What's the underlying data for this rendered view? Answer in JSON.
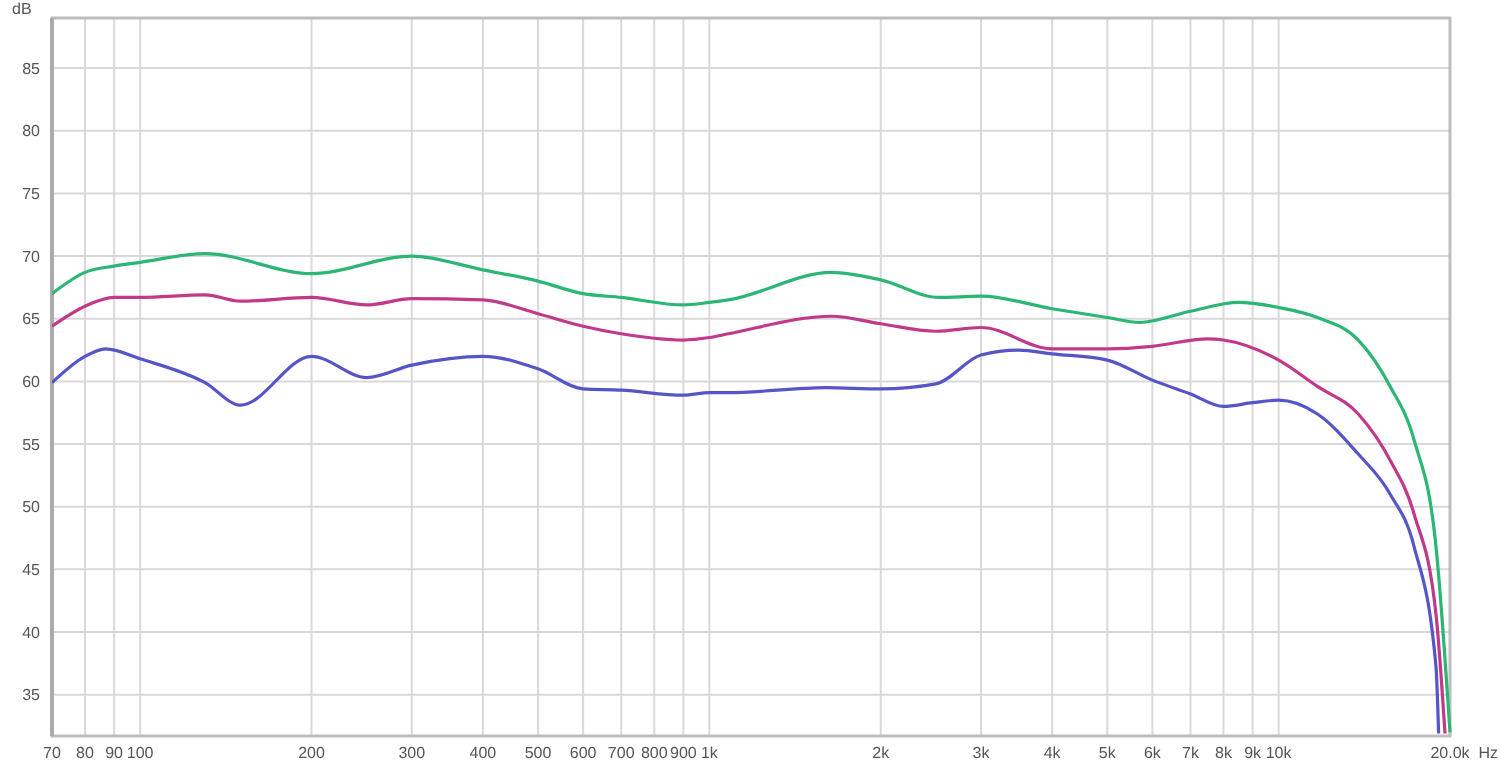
{
  "chart_data": {
    "type": "line",
    "xlabel": "Hz",
    "ylabel": "dB",
    "log": "x",
    "grid": true,
    "marker": "none",
    "line_style": "solid",
    "xlim": [
      70,
      20000
    ],
    "ylim": [
      31.7,
      89
    ],
    "xticks": [
      70,
      80,
      90,
      100,
      200,
      300,
      400,
      500,
      600,
      700,
      800,
      900,
      {
        "value": 1000,
        "label": "1k"
      },
      {
        "value": 2000,
        "label": "2k"
      },
      {
        "value": 3000,
        "label": "3k"
      },
      {
        "value": 4000,
        "label": "4k"
      },
      {
        "value": 5000,
        "label": "5k"
      },
      {
        "value": 6000,
        "label": "6k"
      },
      {
        "value": 7000,
        "label": "7k"
      },
      {
        "value": 8000,
        "label": "8k"
      },
      {
        "value": 9000,
        "label": "9k"
      },
      {
        "value": 10000,
        "label": "10k"
      },
      {
        "value": 20000,
        "label": "20.0k"
      }
    ],
    "yticks": [
      35,
      40,
      45,
      50,
      55,
      60,
      65,
      70,
      75,
      80,
      85
    ],
    "series": [
      {
        "color": "#2bb673",
        "x": [
          70,
          80,
          90,
          100,
          130,
          200,
          300,
          400,
          500,
          600,
          700,
          900,
          1000,
          1080,
          1640,
          2000,
          2530,
          3000,
          4000,
          5000,
          5700,
          7000,
          8500,
          10000,
          11700,
          13800,
          15700,
          17300,
          18900,
          20000
        ],
        "values": [
          67.0,
          68.7,
          69.2,
          69.5,
          70.2,
          68.6,
          70.0,
          68.9,
          68.0,
          67.0,
          66.7,
          66.1,
          66.3,
          66.5,
          68.7,
          68.1,
          66.7,
          66.8,
          65.8,
          65.1,
          64.7,
          65.6,
          66.3,
          65.9,
          65.1,
          63.3,
          59.6,
          55.3,
          46.8,
          32.0
        ]
      },
      {
        "color": "#c0398a",
        "x": [
          70,
          80,
          90,
          100,
          130,
          150,
          200,
          250,
          300,
          400,
          500,
          600,
          700,
          900,
          1000,
          1080,
          1640,
          2000,
          2500,
          3000,
          4000,
          5000,
          6000,
          7500,
          8000,
          10000,
          11700,
          13800,
          15700,
          17300,
          18900,
          19600
        ],
        "values": [
          64.4,
          66.0,
          66.7,
          66.7,
          66.9,
          66.4,
          66.7,
          66.1,
          66.6,
          66.5,
          65.4,
          64.4,
          63.8,
          63.3,
          63.5,
          63.8,
          65.2,
          64.6,
          64.0,
          64.3,
          62.6,
          62.6,
          62.8,
          63.4,
          63.3,
          61.7,
          59.6,
          57.4,
          53.7,
          49.4,
          41.4,
          31.9
        ]
      },
      {
        "color": "#5555c8",
        "x": [
          70,
          80,
          87,
          100,
          130,
          150,
          200,
          250,
          300,
          400,
          500,
          600,
          700,
          900,
          1000,
          1080,
          1600,
          2000,
          2500,
          3000,
          3490,
          4000,
          5000,
          6000,
          7000,
          8000,
          9000,
          10000,
          11700,
          13800,
          15700,
          17300,
          18900,
          19100
        ],
        "values": [
          59.9,
          62.0,
          62.6,
          61.8,
          59.9,
          58.1,
          62.0,
          60.3,
          61.3,
          62.0,
          61.0,
          59.4,
          59.3,
          58.9,
          59.1,
          59.1,
          59.5,
          59.4,
          59.8,
          62.1,
          62.5,
          62.2,
          61.7,
          60.1,
          59.0,
          58.0,
          58.3,
          58.5,
          57.4,
          54.2,
          51.0,
          46.8,
          37.2,
          31.9
        ]
      }
    ]
  }
}
